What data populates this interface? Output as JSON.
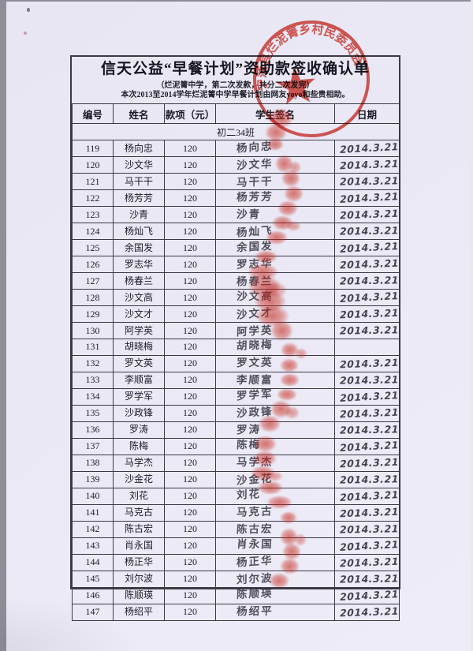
{
  "document": {
    "title": "信天公益“早餐计划”资助款签收确认单",
    "subtitle1": "（烂泥箐中学，第二次发款，共分二次发完）",
    "subtitle2": "本次2013至2014学年烂泥箐中学早餐计划由网友yoyo和些贵相助。",
    "section_label": "初二34班",
    "columns": [
      "编号",
      "姓名",
      "款项（元）",
      "学生签名",
      "日期"
    ],
    "rows": [
      {
        "no": "119",
        "name": "杨向忠",
        "amount": "120",
        "signature": "杨向忠",
        "date": "2014.3.21"
      },
      {
        "no": "120",
        "name": "沙文华",
        "amount": "120",
        "signature": "沙文华",
        "date": "2014.3.21"
      },
      {
        "no": "121",
        "name": "马干干",
        "amount": "120",
        "signature": "马干干",
        "date": "2014.3.21"
      },
      {
        "no": "122",
        "name": "杨芳芳",
        "amount": "120",
        "signature": "杨芳芳",
        "date": "2014.3.21"
      },
      {
        "no": "123",
        "name": "沙青",
        "amount": "120",
        "signature": "沙青",
        "date": "2014.3.21"
      },
      {
        "no": "124",
        "name": "杨灿飞",
        "amount": "120",
        "signature": "杨灿飞",
        "date": "2014.3.21"
      },
      {
        "no": "125",
        "name": "余国发",
        "amount": "120",
        "signature": "余国发",
        "date": "2014.3.21"
      },
      {
        "no": "126",
        "name": "罗志华",
        "amount": "120",
        "signature": "罗志华",
        "date": "2014.3.21"
      },
      {
        "no": "127",
        "name": "杨春兰",
        "amount": "120",
        "signature": "杨春兰",
        "date": "2014.3.21"
      },
      {
        "no": "128",
        "name": "沙文高",
        "amount": "120",
        "signature": "沙文高",
        "date": "2014.3.21"
      },
      {
        "no": "129",
        "name": "沙文才",
        "amount": "120",
        "signature": "沙文才",
        "date": "2014.3.21"
      },
      {
        "no": "130",
        "name": "阿学英",
        "amount": "120",
        "signature": "阿学英",
        "date": "2014.3.21"
      },
      {
        "no": "131",
        "name": "胡晓梅",
        "amount": "120",
        "signature": "胡晓梅",
        "date": ""
      },
      {
        "no": "132",
        "name": "罗文英",
        "amount": "120",
        "signature": "罗文英",
        "date": "2014.3.21"
      },
      {
        "no": "133",
        "name": "李顺富",
        "amount": "120",
        "signature": "李顺富",
        "date": "2014.3.21"
      },
      {
        "no": "134",
        "name": "罗学军",
        "amount": "120",
        "signature": "罗学军",
        "date": "2014.3.21"
      },
      {
        "no": "135",
        "name": "沙政锋",
        "amount": "120",
        "signature": "沙政锋",
        "date": "2014.3.21"
      },
      {
        "no": "136",
        "name": "罗涛",
        "amount": "120",
        "signature": "罗涛",
        "date": "2014.3.21"
      },
      {
        "no": "137",
        "name": "陈梅",
        "amount": "120",
        "signature": "陈梅",
        "date": "2014.3.21"
      },
      {
        "no": "138",
        "name": "马学杰",
        "amount": "120",
        "signature": "马学杰",
        "date": "2014.3.21"
      },
      {
        "no": "139",
        "name": "沙金花",
        "amount": "120",
        "signature": "沙金花",
        "date": "2014.3.21"
      },
      {
        "no": "140",
        "name": "刘花",
        "amount": "120",
        "signature": "刘花",
        "date": "2014.3.21"
      },
      {
        "no": "141",
        "name": "马克古",
        "amount": "120",
        "signature": "马克古",
        "date": "2014.3.21"
      },
      {
        "no": "142",
        "name": "陈古宏",
        "amount": "120",
        "signature": "陈古宏",
        "date": "2014.3.21"
      },
      {
        "no": "143",
        "name": "肖永国",
        "amount": "120",
        "signature": "肖永国",
        "date": "2014.3.21"
      },
      {
        "no": "144",
        "name": "杨正华",
        "amount": "120",
        "signature": "杨正华",
        "date": "2014.3.21"
      },
      {
        "no": "145",
        "name": "刘尔波",
        "amount": "120",
        "signature": "刘尔波",
        "date": "2014.3.21"
      },
      {
        "no": "146",
        "name": "陈顺瑛",
        "amount": "120",
        "signature": "陈顺瑛",
        "date": "2014.3.21"
      },
      {
        "no": "147",
        "name": "杨绍平",
        "amount": "120",
        "signature": "杨绍平",
        "date": "2014.3.21"
      }
    ],
    "stamp": {
      "ring_text": "宁蒗县烂泥箐乡村民委员会",
      "color": "#d6392f"
    },
    "colors": {
      "paper": "#eae9f4",
      "line": "#3a3a46",
      "ink": "#1c1c26",
      "fingerprint_red": "#c6281c",
      "stamp_red": "#d6392f"
    }
  }
}
